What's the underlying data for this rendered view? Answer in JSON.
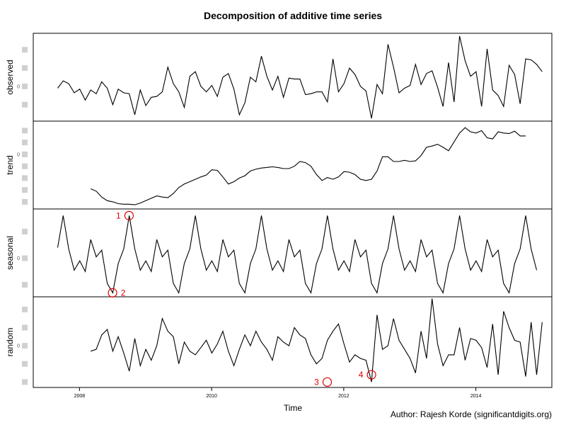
{
  "chart_data": {
    "type": "line",
    "title": "Decomposition of additive time series",
    "xlabel": "Time",
    "author": "Author: Rajesh Korde (significantdigits.org)",
    "x_ticks": [
      2008,
      2010,
      2012,
      2014
    ],
    "xlim": [
      2007.3,
      2015.15
    ],
    "series": [
      {
        "name": "observed",
        "start": 2007.67,
        "values": [
          -0.2,
          0.6,
          0.3,
          -0.7,
          -0.3,
          -1.5,
          -0.4,
          -0.8,
          0.5,
          -0.2,
          -2.0,
          -0.3,
          -0.7,
          -0.8,
          -3.1,
          -0.4,
          -2.1,
          -1.2,
          -1.1,
          -0.6,
          2.1,
          0.3,
          -0.6,
          -2.3,
          1.1,
          1.6,
          0.0,
          -0.6,
          0.1,
          -1.1,
          1.0,
          1.4,
          -0.3,
          -3.1,
          -1.8,
          1.0,
          0.5,
          3.3,
          1.1,
          -0.4,
          1.1,
          -1.2,
          0.9,
          0.8,
          0.8,
          -0.9,
          -0.8,
          -0.6,
          -0.6,
          -1.7,
          3.0,
          -0.6,
          0.3,
          2.0,
          1.3,
          0.0,
          -0.5,
          -3.5,
          0.2,
          -0.8,
          4.6,
          2.1,
          -0.7,
          -0.2,
          0.1,
          2.4,
          0.2,
          1.4,
          1.7,
          -0.1,
          -2.2,
          2.6,
          -1.7,
          5.5,
          2.8,
          1.1,
          1.6,
          -2.2,
          4.1,
          -0.4,
          -1.0,
          -2.2,
          2.3,
          1.3,
          -1.9,
          3.0,
          2.9,
          2.4,
          1.6
        ],
        "ylim": [
          -3.8,
          5.8
        ],
        "yticks": [
          -2,
          0,
          2,
          4
        ]
      },
      {
        "name": "trend",
        "start": 2008.17,
        "values": [
          -2.9,
          -3.1,
          -3.6,
          -3.9,
          -4.0,
          -4.15,
          -4.2,
          -4.2,
          -4.25,
          -4.1,
          -3.9,
          -3.7,
          -3.5,
          -3.6,
          -3.65,
          -3.3,
          -2.8,
          -2.5,
          -2.3,
          -2.1,
          -1.9,
          -1.75,
          -1.3,
          -1.35,
          -1.9,
          -2.5,
          -2.3,
          -2.0,
          -1.8,
          -1.4,
          -1.25,
          -1.15,
          -1.1,
          -1.05,
          -1.1,
          -1.2,
          -1.2,
          -1.0,
          -0.6,
          -0.7,
          -1.0,
          -1.7,
          -2.2,
          -1.95,
          -2.1,
          -1.9,
          -1.45,
          -1.5,
          -1.7,
          -2.1,
          -2.2,
          -2.1,
          -1.4,
          -0.2,
          -0.2,
          -0.6,
          -0.6,
          -0.5,
          -0.6,
          -0.55,
          -0.1,
          0.6,
          0.7,
          0.85,
          0.6,
          0.3,
          1.05,
          1.8,
          2.25,
          1.9,
          1.8,
          2.0,
          1.4,
          1.3,
          1.9,
          1.8,
          1.75,
          1.95,
          1.55,
          1.55
        ],
        "ylim": [
          -4.6,
          2.8
        ],
        "yticks": [
          -4,
          -3,
          -2,
          -1,
          0,
          1,
          2
        ]
      },
      {
        "name": "seasonal",
        "start": 2007.67,
        "values": [
          0.4,
          1.6,
          0.35,
          -0.45,
          -0.1,
          -0.5,
          0.7,
          0.05,
          0.3,
          -0.95,
          -1.3,
          -0.2,
          0.35,
          1.6
        ],
        "ylim": [
          -1.45,
          1.85
        ],
        "yticks": [
          -1,
          0,
          1
        ]
      },
      {
        "name": "random",
        "start": 2008.17,
        "values": [
          -0.3,
          -0.2,
          0.6,
          0.9,
          -0.3,
          0.5,
          -0.4,
          -1.4,
          0.4,
          -1.1,
          -0.2,
          -0.8,
          0.0,
          1.5,
          0.8,
          0.5,
          -1.0,
          0.2,
          -0.3,
          -0.5,
          -0.1,
          0.3,
          -0.4,
          0.1,
          0.8,
          -0.3,
          -1.1,
          -0.2,
          0.6,
          0.0,
          0.8,
          0.2,
          -0.2,
          -0.8,
          0.5,
          0.2,
          0.0,
          1.0,
          0.6,
          0.4,
          -0.5,
          -1.0,
          -0.7,
          0.3,
          0.8,
          1.2,
          0.1,
          -0.9,
          -0.5,
          -0.7,
          -0.8,
          -2.0,
          1.7,
          -0.2,
          0.0,
          1.5,
          0.3,
          -0.2,
          -0.7,
          -1.5,
          0.8,
          -0.7,
          2.6,
          0.1,
          -1.1,
          -0.5,
          -0.5,
          1.0,
          -0.8,
          0.4,
          0.3,
          -0.1,
          -1.2,
          1.2,
          -1.6,
          1.9,
          1.0,
          0.3,
          0.2,
          -1.7,
          1.3,
          -1.6,
          1.3
        ],
        "ylim": [
          -2.3,
          2.7
        ],
        "yticks": [
          -2,
          -1,
          0,
          1,
          2
        ]
      }
    ],
    "annotations": [
      {
        "label": "1",
        "series": "seasonal",
        "x": 2008.75,
        "y": 1.6,
        "label_side": "left"
      },
      {
        "label": "2",
        "series": "seasonal",
        "x": 2008.5,
        "y": -1.3,
        "label_side": "right"
      },
      {
        "label": "3",
        "series": "random",
        "x": 2011.75,
        "y": -2.0,
        "label_side": "left"
      },
      {
        "label": "4",
        "series": "random",
        "x": 2012.42,
        "y": -1.6,
        "label_side": "left"
      }
    ],
    "line_color": "#000000",
    "annotation_color": "#e00000"
  }
}
